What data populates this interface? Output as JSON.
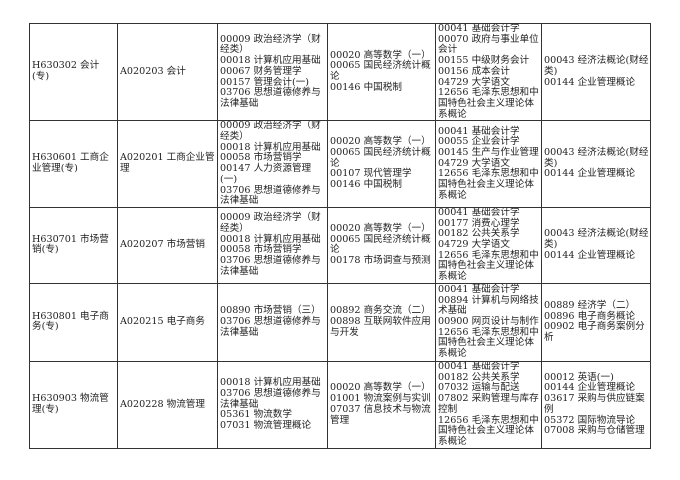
{
  "rows": [
    {
      "specialty": "H630302 会计(专)",
      "major": "A020203 会计",
      "col3": [
        "00009 政治经济学（财经类）",
        "00018 计算机应用基础",
        "00067 财务管理学",
        "00157 管理会计(一)",
        "03706 思想道德修养与法律基础"
      ],
      "col4": [
        "00020 高等数学（一）",
        "00065 国民经济统计概论",
        "00146 中国税制"
      ],
      "col5": [
        "00041 基础会计学",
        "00070 政府与事业单位会计",
        "00155 中级财务会计",
        "00156 成本会计",
        "04729 大学语文",
        "12656 毛泽东思想和中国特色社会主义理论体系概论"
      ],
      "col6": [
        "00043 经济法概论(财经类)",
        "00144 企业管理概论"
      ]
    },
    {
      "specialty": "H630601 工商企业管理(专)",
      "major": "A020201 工商企业管理",
      "col3": [
        "00009 政治经济学（财经类）",
        "00018 计算机应用基础",
        "00058 市场营销学",
        "00147 人力资源管理(一)",
        "03706 思想道德修养与法律基础"
      ],
      "col4": [
        "00020 高等数学（一）",
        "00065 国民经济统计概论",
        "00107 现代管理学",
        "00146 中国税制"
      ],
      "col5": [
        "00041 基础会计学",
        "00055 企业会计学",
        "00145 生产与作业管理",
        "04729 大学语文",
        "12656 毛泽东思想和中国特色社会主义理论体系概论"
      ],
      "col6": [
        "00043 经济法概论(财经类)",
        "00144 企业管理概论"
      ]
    },
    {
      "specialty": "H630701 市场营销(专)",
      "major": "A020207 市场营销",
      "col3": [
        "00009 政治经济学（财经类）",
        "00018 计算机应用基础",
        "00058 市场营销学",
        "03706 思想道德修养与法律基础"
      ],
      "col4": [
        "00020 高等数学（一）",
        "00065 国民经济统计概论",
        "00178 市场调查与预测"
      ],
      "col5": [
        "00041 基础会计学",
        "00177 消费心理学",
        "00182 公共关系学",
        "04729 大学语文",
        "12656 毛泽东思想和中国特色社会主义理论体系概论"
      ],
      "col6": [
        "00043 经济法概论(财经类)",
        "00144 企业管理概论"
      ]
    },
    {
      "specialty": "H630801 电子商务(专)",
      "major": "A020215 电子商务",
      "col3": [
        "00890 市场营销（三）",
        "03706 思想道德修养与法律基础"
      ],
      "col4": [
        "00892 商务交流（二）",
        "00898 互联网软件应用与开发"
      ],
      "col5": [
        "00041 基础会计学",
        "00894 计算机与网络技术基础",
        "00900 网页设计与制作",
        "12656 毛泽东思想和中国特色社会主义理论体系概论"
      ],
      "col6": [
        "00889 经济学（二）",
        "00896 电子商务概论",
        "00902 电子商务案例分析"
      ]
    },
    {
      "specialty": "H630903 物流管理(专)",
      "major": "A020228 物流管理",
      "col3": [
        "00018 计算机应用基础",
        "03706 思想道德修养与法律基础",
        "05361 物流数学",
        "07031 物流管理概论"
      ],
      "col4": [
        "00020 高等数学（一）",
        "01001 物流案例与实训",
        "07037 信息技术与物流管理"
      ],
      "col5": [
        "00041 基础会计学",
        "00182 公共关系学",
        "07032 运输与配送",
        "07802 采购管理与库存控制",
        "12656 毛泽东思想和中国特色社会主义理论体系概论"
      ],
      "col6": [
        "00012 英语(一)",
        "00144 企业管理概论",
        "03617 采购与供应链案例",
        "05372 国际物流导论",
        "07008 采购与仓储管理"
      ]
    }
  ]
}
